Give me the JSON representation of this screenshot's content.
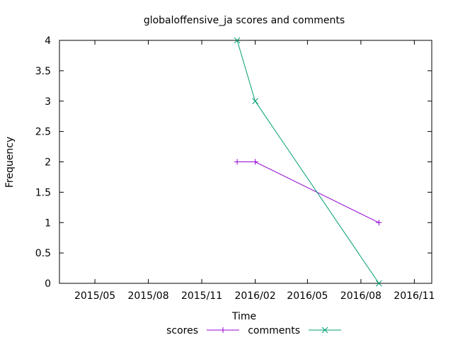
{
  "chart_data": {
    "type": "line",
    "title": "globaloffensive_ja scores and comments",
    "xlabel": "Time",
    "ylabel": "Frequency",
    "x_is_date": true,
    "xlim": [
      "2015-03-01",
      "2016-12-01"
    ],
    "ylim": [
      0,
      4
    ],
    "xticks": [
      {
        "date": "2015-05-01",
        "label": "2015/05"
      },
      {
        "date": "2015-08-01",
        "label": "2015/08"
      },
      {
        "date": "2015-11-01",
        "label": "2015/11"
      },
      {
        "date": "2016-02-01",
        "label": "2016/02"
      },
      {
        "date": "2016-05-01",
        "label": "2016/05"
      },
      {
        "date": "2016-08-01",
        "label": "2016/08"
      },
      {
        "date": "2016-11-01",
        "label": "2016/11"
      }
    ],
    "yticks": [
      {
        "value": 0,
        "label": "0"
      },
      {
        "value": 0.5,
        "label": "0.5"
      },
      {
        "value": 1,
        "label": "1"
      },
      {
        "value": 1.5,
        "label": "1.5"
      },
      {
        "value": 2,
        "label": "2"
      },
      {
        "value": 2.5,
        "label": "2.5"
      },
      {
        "value": 3,
        "label": "3"
      },
      {
        "value": 3.5,
        "label": "3.5"
      },
      {
        "value": 4,
        "label": "4"
      }
    ],
    "grid": false,
    "legend_position": "bottom-center",
    "series": [
      {
        "name": "scores",
        "color": "#9400d3",
        "marker": "plus",
        "points": [
          {
            "x": "2016-01-01",
            "y": 2
          },
          {
            "x": "2016-02-01",
            "y": 2
          },
          {
            "x": "2016-09-01",
            "y": 1
          }
        ]
      },
      {
        "name": "comments",
        "color": "#009e73",
        "marker": "cross",
        "points": [
          {
            "x": "2016-01-01",
            "y": 4
          },
          {
            "x": "2016-02-01",
            "y": 3
          },
          {
            "x": "2016-09-01",
            "y": 0
          }
        ]
      }
    ]
  }
}
